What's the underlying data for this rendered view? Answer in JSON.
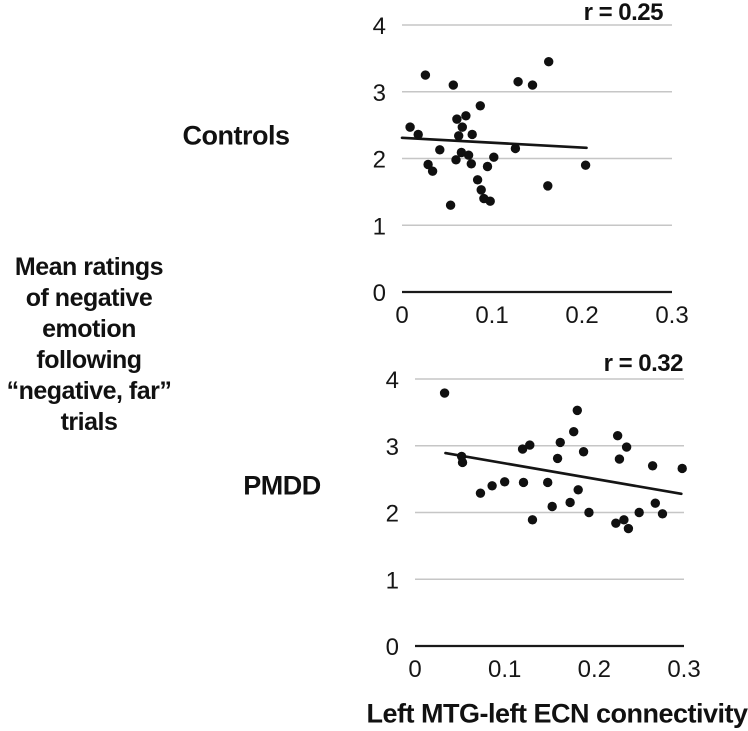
{
  "figure": {
    "y_axis_label_lines": [
      "Mean ratings",
      "of negative",
      "emotion",
      "following",
      "“negative, far”",
      "trials"
    ],
    "x_axis_label": "Left MTG-left ECN connectivity"
  },
  "colors": {
    "dot": "#101010",
    "trend": "#151515",
    "gridline": "#c6c6c6",
    "axis": "#1a1a1a",
    "text": "#111111",
    "background": "#ffffff"
  },
  "chart_data": [
    {
      "type": "scatter",
      "group_label": "Controls",
      "annotation": "r = 0.25",
      "r_value": 0.25,
      "xlabel": "Left MTG-left ECN connectivity",
      "ylabel": "Mean ratings of negative emotion following “negative, far” trials",
      "xlim": [
        0,
        0.3
      ],
      "ylim": [
        0,
        4
      ],
      "x_ticks": [
        0,
        0.1,
        0.2,
        0.3
      ],
      "x_tick_labels": [
        "0",
        "0.1",
        "0.2",
        "0.3"
      ],
      "y_ticks": [
        0,
        1,
        2,
        3,
        4
      ],
      "y_tick_labels": [
        "0",
        "1",
        "2",
        "3",
        "4"
      ],
      "grid": true,
      "points": [
        [
          0.026,
          3.25
        ],
        [
          0.057,
          3.1
        ],
        [
          0.129,
          3.15
        ],
        [
          0.145,
          3.1
        ],
        [
          0.163,
          3.45
        ],
        [
          0.087,
          2.79
        ],
        [
          0.061,
          2.59
        ],
        [
          0.071,
          2.64
        ],
        [
          0.009,
          2.47
        ],
        [
          0.067,
          2.47
        ],
        [
          0.018,
          2.36
        ],
        [
          0.063,
          2.34
        ],
        [
          0.078,
          2.36
        ],
        [
          0.042,
          2.13
        ],
        [
          0.126,
          2.15
        ],
        [
          0.06,
          1.98
        ],
        [
          0.066,
          2.09
        ],
        [
          0.074,
          2.05
        ],
        [
          0.029,
          1.91
        ],
        [
          0.034,
          1.81
        ],
        [
          0.077,
          1.92
        ],
        [
          0.095,
          1.88
        ],
        [
          0.102,
          2.02
        ],
        [
          0.204,
          1.9
        ],
        [
          0.084,
          1.68
        ],
        [
          0.088,
          1.53
        ],
        [
          0.162,
          1.59
        ],
        [
          0.091,
          1.4
        ],
        [
          0.098,
          1.36
        ],
        [
          0.054,
          1.3
        ]
      ],
      "trend_line": {
        "x1": 0.0,
        "y1": 2.31,
        "x2": 0.205,
        "y2": 2.16
      }
    },
    {
      "type": "scatter",
      "group_label": "PMDD",
      "annotation": "r = 0.32",
      "r_value": 0.32,
      "xlabel": "Left MTG-left ECN connectivity",
      "ylabel": "Mean ratings of negative emotion following “negative, far” trials",
      "xlim": [
        0,
        0.3
      ],
      "ylim": [
        0,
        4
      ],
      "x_ticks": [
        0,
        0.1,
        0.2,
        0.3
      ],
      "x_tick_labels": [
        "0",
        "0.1",
        "0.2",
        "0.3"
      ],
      "y_ticks": [
        0,
        1,
        2,
        3,
        4
      ],
      "y_tick_labels": [
        "0",
        "1",
        "2",
        "3",
        "4"
      ],
      "grid": true,
      "points": [
        [
          0.033,
          3.79
        ],
        [
          0.181,
          3.53
        ],
        [
          0.177,
          3.21
        ],
        [
          0.226,
          3.15
        ],
        [
          0.162,
          3.05
        ],
        [
          0.128,
          3.01
        ],
        [
          0.12,
          2.95
        ],
        [
          0.236,
          2.98
        ],
        [
          0.188,
          2.91
        ],
        [
          0.052,
          2.84
        ],
        [
          0.159,
          2.81
        ],
        [
          0.228,
          2.8
        ],
        [
          0.053,
          2.75
        ],
        [
          0.265,
          2.7
        ],
        [
          0.298,
          2.66
        ],
        [
          0.121,
          2.45
        ],
        [
          0.148,
          2.45
        ],
        [
          0.1,
          2.46
        ],
        [
          0.086,
          2.4
        ],
        [
          0.073,
          2.29
        ],
        [
          0.182,
          2.34
        ],
        [
          0.173,
          2.15
        ],
        [
          0.153,
          2.09
        ],
        [
          0.268,
          2.14
        ],
        [
          0.194,
          2.0
        ],
        [
          0.25,
          2.0
        ],
        [
          0.276,
          1.98
        ],
        [
          0.131,
          1.89
        ],
        [
          0.224,
          1.84
        ],
        [
          0.233,
          1.89
        ],
        [
          0.238,
          1.76
        ]
      ],
      "trend_line": {
        "x1": 0.034,
        "y1": 2.89,
        "x2": 0.297,
        "y2": 2.28
      }
    }
  ]
}
